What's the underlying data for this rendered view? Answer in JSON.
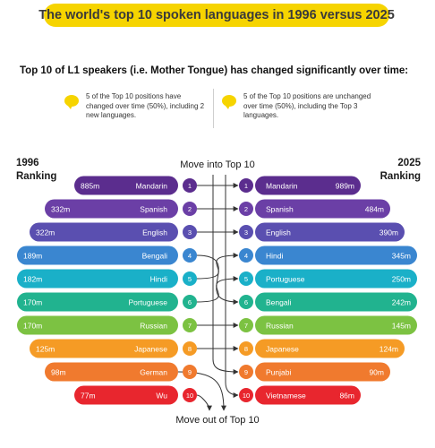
{
  "title": "The world's top 10 spoken languages in 1996 versus 2025",
  "subtitle": "Top 10 of L1 speakers (i.e. Mother Tongue) has changed significantly over time:",
  "notes": {
    "left": "5 of the Top 10 positions have changed over time (50%), including 2 new languages.",
    "right": "5 of the Top 10 positions are unchanged over time (50%), including the Top 3 languages."
  },
  "labels": {
    "left_year": "1996",
    "left_ranking": "Ranking",
    "right_year": "2025",
    "right_ranking": "Ranking",
    "move_into": "Move into Top 10",
    "move_out": "Move out of Top 10"
  },
  "chart_data": {
    "type": "slope",
    "left_ranking_1996": [
      {
        "rank": 1,
        "language": "Mandarin",
        "value": "885m",
        "color": "#5b2d8e"
      },
      {
        "rank": 2,
        "language": "Spanish",
        "value": "332m",
        "color": "#6b3fa6"
      },
      {
        "rank": 3,
        "language": "English",
        "value": "322m",
        "color": "#5a4fb0"
      },
      {
        "rank": 4,
        "language": "Bengali",
        "value": "189m",
        "color": "#3a86d0"
      },
      {
        "rank": 5,
        "language": "Hindi",
        "value": "182m",
        "color": "#1ab0c8"
      },
      {
        "rank": 6,
        "language": "Portuguese",
        "value": "170m",
        "color": "#21b38f"
      },
      {
        "rank": 7,
        "language": "Russian",
        "value": "170m",
        "color": "#7cc242"
      },
      {
        "rank": 8,
        "language": "Japanese",
        "value": "125m",
        "color": "#f59b25"
      },
      {
        "rank": 9,
        "language": "German",
        "value": "98m",
        "color": "#f07a2e"
      },
      {
        "rank": 10,
        "language": "Wu",
        "value": "77m",
        "color": "#e8262e"
      }
    ],
    "right_ranking_2025": [
      {
        "rank": 1,
        "language": "Mandarin",
        "value": "989m",
        "color": "#5b2d8e"
      },
      {
        "rank": 2,
        "language": "Spanish",
        "value": "484m",
        "color": "#6b3fa6"
      },
      {
        "rank": 3,
        "language": "English",
        "value": "390m",
        "color": "#5a4fb0"
      },
      {
        "rank": 4,
        "language": "Hindi",
        "value": "345m",
        "color": "#3a86d0"
      },
      {
        "rank": 5,
        "language": "Portuguese",
        "value": "250m",
        "color": "#1ab0c8"
      },
      {
        "rank": 6,
        "language": "Bengali",
        "value": "242m",
        "color": "#21b38f"
      },
      {
        "rank": 7,
        "language": "Russian",
        "value": "145m",
        "color": "#7cc242"
      },
      {
        "rank": 8,
        "language": "Japanese",
        "value": "124m",
        "color": "#f59b25"
      },
      {
        "rank": 9,
        "language": "Punjabi",
        "value": "90m",
        "color": "#f07a2e"
      },
      {
        "rank": 10,
        "language": "Vietnamese",
        "value": "86m",
        "color": "#e8262e"
      }
    ],
    "moves": [
      {
        "from_rank": 1,
        "to_rank": 1
      },
      {
        "from_rank": 2,
        "to_rank": 2
      },
      {
        "from_rank": 3,
        "to_rank": 3
      },
      {
        "from_rank": 4,
        "to_rank": 6
      },
      {
        "from_rank": 5,
        "to_rank": 4
      },
      {
        "from_rank": 6,
        "to_rank": 5
      },
      {
        "from_rank": 7,
        "to_rank": 7
      },
      {
        "from_rank": 8,
        "to_rank": 8
      },
      {
        "from_rank": 9,
        "to_rank": null
      },
      {
        "from_rank": 10,
        "to_rank": null
      },
      {
        "from_rank": null,
        "to_rank": 9
      },
      {
        "from_rank": null,
        "to_rank": 10
      }
    ]
  }
}
